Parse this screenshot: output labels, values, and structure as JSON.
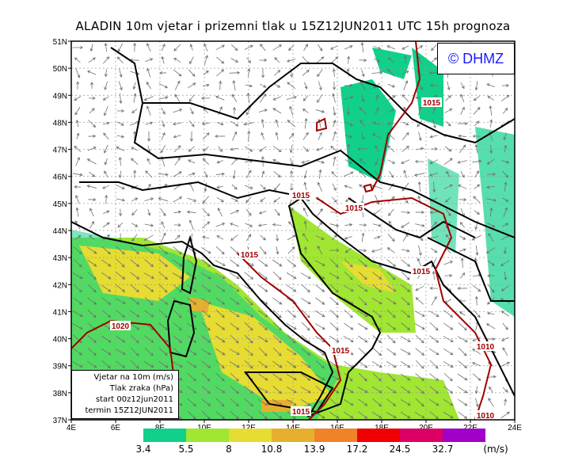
{
  "title": "ALADIN 10m vjetar i prizemni tlak u 15Z12JUN2011 UTC 15h prognoza",
  "logo": "© DHMZ",
  "map": {
    "lat_ticks": [
      "51N",
      "50N",
      "49N",
      "48N",
      "47N",
      "46N",
      "45N",
      "44N",
      "43N",
      "42N",
      "41N",
      "40N",
      "39N",
      "38N",
      "37N"
    ],
    "lon_ticks": [
      "4E",
      "6E",
      "8E",
      "10E",
      "12E",
      "14E",
      "16E",
      "18E",
      "20E",
      "22E",
      "24E"
    ],
    "lat_range": [
      37,
      51
    ],
    "lon_range": [
      4,
      24
    ],
    "grid": "dotted",
    "isobar_color": "#a00000",
    "isobar_labels": [
      "1015",
      "1015",
      "1015",
      "1015",
      "1015",
      "1015",
      "1015",
      "1020",
      "1010",
      "1010"
    ]
  },
  "info": {
    "line1": "Vjetar na 10m (m/s)",
    "line2": "Tlak zraka (hPa)",
    "line3": "start 00z12jun2011",
    "line4": "termin 15Z12JUN2011"
  },
  "legend": {
    "unit": "(m/s)",
    "thresholds": [
      "3.4",
      "5.5",
      "8",
      "10.8",
      "13.9",
      "17.2",
      "24.5",
      "32.7"
    ],
    "colors": [
      "#10d08a",
      "#a0e632",
      "#e6dc32",
      "#e6af2d",
      "#f08228",
      "#f00000",
      "#dc0064",
      "#a000c8"
    ]
  }
}
